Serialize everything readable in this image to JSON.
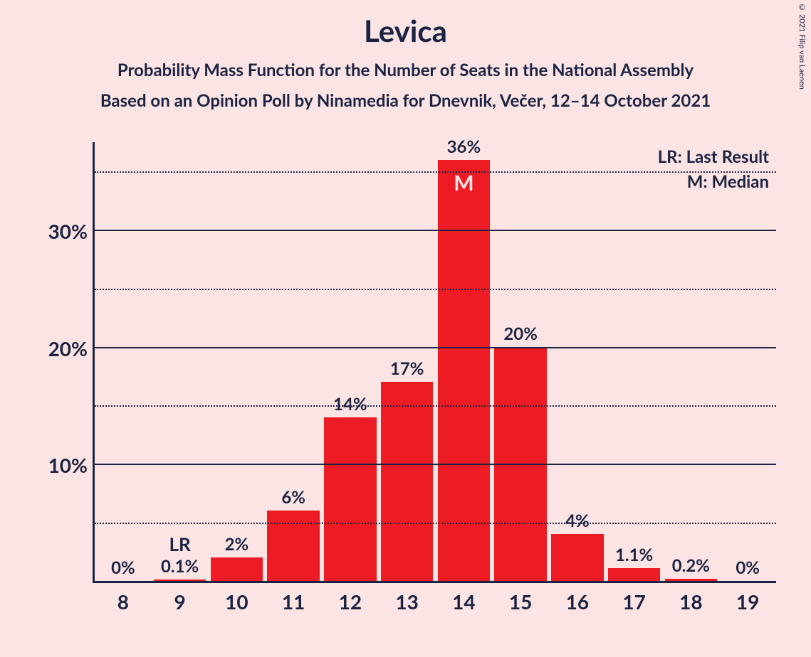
{
  "title": "Levica",
  "subtitle1": "Probability Mass Function for the Number of Seats in the National Assembly",
  "subtitle2": "Based on an Opinion Poll by Ninamedia for Dnevnik, Večer, 12–14 October 2021",
  "copyright": "© 2021 Filip van Laenen",
  "legend": {
    "lr": "LR: Last Result",
    "m": "M: Median"
  },
  "chart": {
    "type": "bar",
    "bar_color": "#ed1c24",
    "background_color": "#fce4e4",
    "axis_color": "#1a2442",
    "text_color": "#1a2442",
    "inner_label_color": "#fce4e4",
    "label_fontsize": 24,
    "tick_fontsize": 28,
    "y_axis": {
      "min": 0,
      "max": 37.5,
      "major_ticks": [
        10,
        20,
        30
      ],
      "minor_ticks": [
        5,
        15,
        25,
        35
      ],
      "tick_labels": {
        "10": "10%",
        "20": "20%",
        "30": "30%"
      }
    },
    "categories": [
      "8",
      "9",
      "10",
      "11",
      "12",
      "13",
      "14",
      "15",
      "16",
      "17",
      "18",
      "19"
    ],
    "values": [
      0,
      0.1,
      2,
      6,
      14,
      17,
      36,
      20,
      4,
      1.1,
      0.2,
      0
    ],
    "value_labels": [
      "0%",
      "0.1%",
      "2%",
      "6%",
      "14%",
      "17%",
      "36%",
      "20%",
      "4%",
      "1.1%",
      "0.2%",
      "0%"
    ],
    "lr_index": 1,
    "lr_label": "LR",
    "median_index": 6,
    "median_label": "M"
  }
}
